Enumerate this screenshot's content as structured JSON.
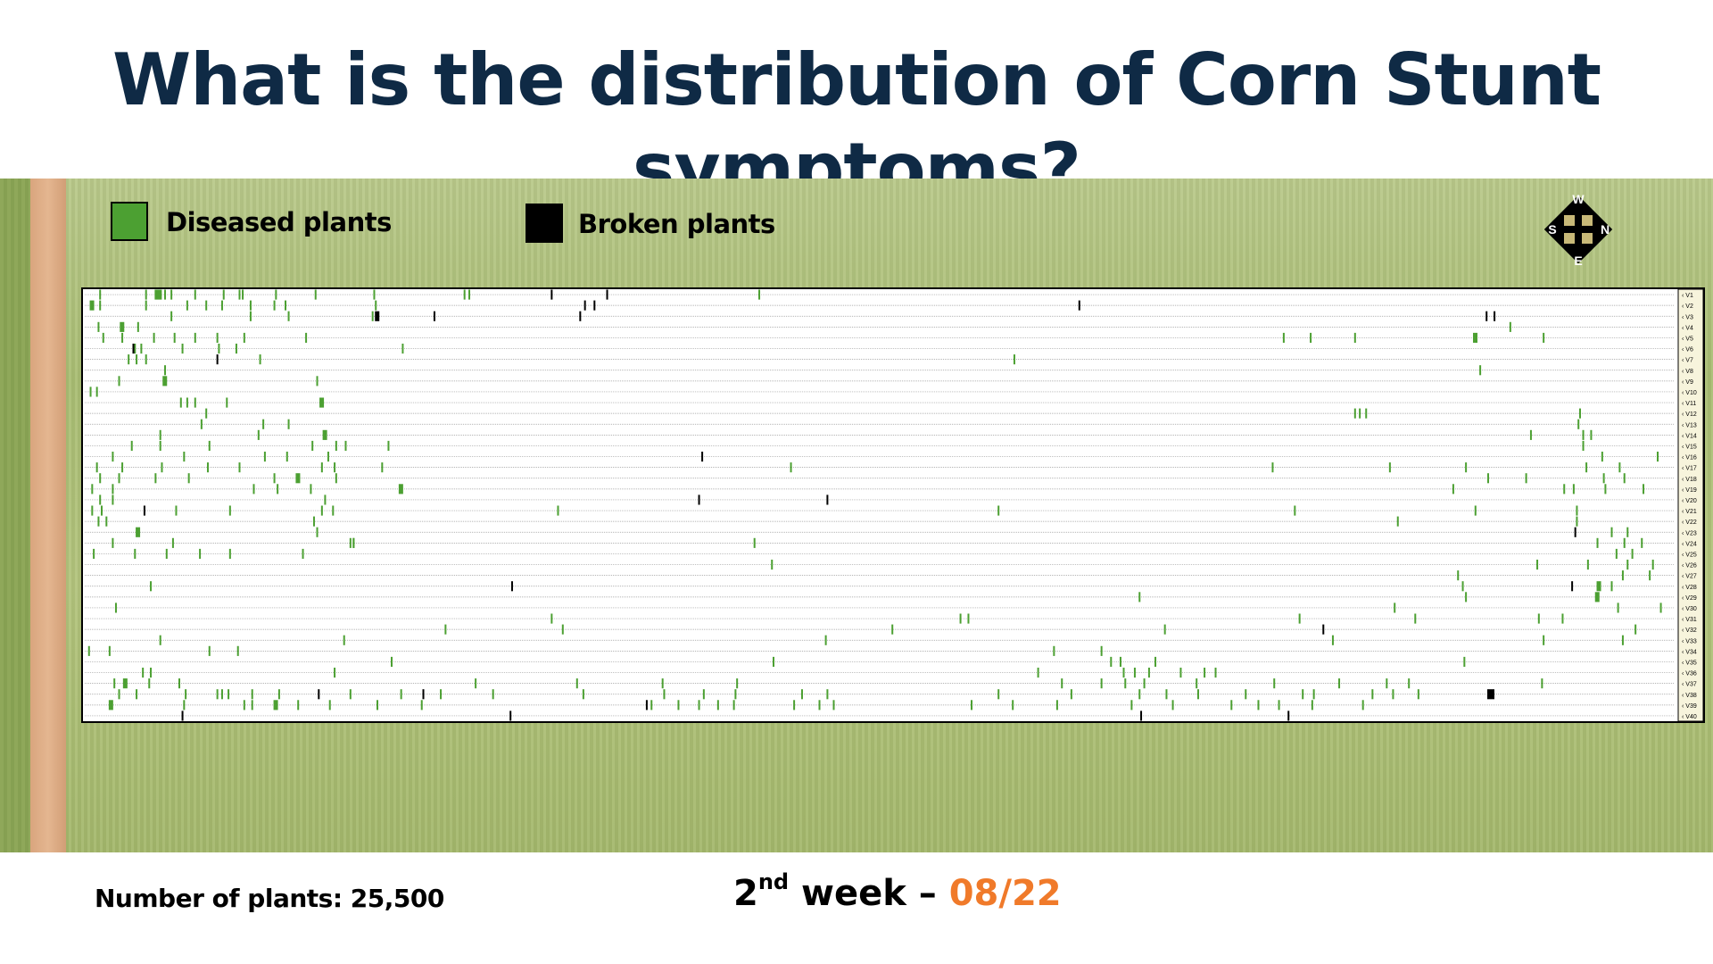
{
  "title": "What is the distribution of Corn Stunt symptoms?",
  "legend": {
    "diseased_label": "Diseased plants",
    "broken_label": "Broken plants",
    "diseased_color": "#4ca032",
    "broken_color": "#000000"
  },
  "compass": {
    "top": "W",
    "left": "S",
    "right": "N",
    "bottom": "E"
  },
  "footer": {
    "plant_count": "Number of plants: 25,500",
    "week_num": "2",
    "week_sup": "nd",
    "week_word": " week – ",
    "week_date": "08/22"
  },
  "row_labels": [
    "V1",
    "V2",
    "V3",
    "V4",
    "V5",
    "V6",
    "V7",
    "V8",
    "V9",
    "V10",
    "V11",
    "V12",
    "V13",
    "V14",
    "V15",
    "V16",
    "V17",
    "V18",
    "V19",
    "V20",
    "V21",
    "V22",
    "V23",
    "V24",
    "V25",
    "V26",
    "V27",
    "V28",
    "V29",
    "V30",
    "V31",
    "V32",
    "V33",
    "V34",
    "V35",
    "V36",
    "V37",
    "V38",
    "V39",
    "V40"
  ],
  "marks": {
    "diseased": [
      [
        [
          0.008,
          1
        ],
        [
          0.037,
          1
        ],
        [
          0.043,
          3
        ],
        [
          0.049,
          1
        ],
        [
          0.053,
          1
        ],
        [
          0.068,
          1
        ],
        [
          0.086,
          1
        ],
        [
          0.096,
          1
        ],
        [
          0.098,
          1
        ],
        [
          0.119,
          1
        ],
        [
          0.144,
          1
        ],
        [
          0.181,
          1
        ],
        [
          0.238,
          1
        ],
        [
          0.241,
          1
        ],
        [
          0.424,
          1
        ]
      ],
      [
        [
          0.002,
          2
        ],
        [
          0.008,
          1
        ],
        [
          0.037,
          1
        ],
        [
          0.063,
          1
        ],
        [
          0.075,
          1
        ],
        [
          0.085,
          1
        ],
        [
          0.103,
          1
        ],
        [
          0.118,
          1
        ],
        [
          0.125,
          1
        ],
        [
          0.182,
          1
        ]
      ],
      [
        [
          0.053,
          1
        ],
        [
          0.103,
          1
        ],
        [
          0.127,
          1
        ],
        [
          0.18,
          1
        ]
      ],
      [
        [
          0.007,
          1
        ],
        [
          0.021,
          2
        ],
        [
          0.032,
          1
        ],
        [
          0.898,
          1
        ]
      ],
      [
        [
          0.01,
          1
        ],
        [
          0.022,
          1
        ],
        [
          0.042,
          1
        ],
        [
          0.055,
          1
        ],
        [
          0.068,
          1
        ],
        [
          0.082,
          1
        ],
        [
          0.099,
          1
        ],
        [
          0.138,
          1
        ],
        [
          0.755,
          1
        ],
        [
          0.772,
          1
        ],
        [
          0.8,
          1
        ],
        [
          0.875,
          2
        ],
        [
          0.919,
          1
        ]
      ],
      [
        [
          0.03,
          1
        ],
        [
          0.034,
          1
        ],
        [
          0.06,
          1
        ],
        [
          0.083,
          1
        ],
        [
          0.094,
          1
        ],
        [
          0.199,
          1
        ]
      ],
      [
        [
          0.026,
          1
        ],
        [
          0.031,
          1
        ],
        [
          0.037,
          1
        ],
        [
          0.109,
          1
        ],
        [
          0.585,
          1
        ]
      ],
      [
        [
          0.049,
          1
        ],
        [
          0.879,
          1
        ]
      ],
      [
        [
          0.02,
          1
        ],
        [
          0.048,
          2
        ],
        [
          0.145,
          1
        ]
      ],
      [
        [
          0.002,
          1
        ],
        [
          0.006,
          1
        ]
      ],
      [
        [
          0.059,
          1
        ],
        [
          0.063,
          1
        ],
        [
          0.068,
          1
        ],
        [
          0.088,
          1
        ],
        [
          0.147,
          2
        ]
      ],
      [
        [
          0.075,
          1
        ],
        [
          0.8,
          1
        ],
        [
          0.803,
          1
        ],
        [
          0.807,
          1
        ],
        [
          0.942,
          1
        ]
      ],
      [
        [
          0.072,
          1
        ],
        [
          0.111,
          1
        ],
        [
          0.127,
          1
        ],
        [
          0.941,
          1
        ]
      ],
      [
        [
          0.046,
          1
        ],
        [
          0.108,
          1
        ],
        [
          0.149,
          2
        ],
        [
          0.911,
          1
        ],
        [
          0.944,
          1
        ],
        [
          0.949,
          1
        ]
      ],
      [
        [
          0.028,
          1
        ],
        [
          0.046,
          1
        ],
        [
          0.077,
          1
        ],
        [
          0.142,
          1
        ],
        [
          0.157,
          1
        ],
        [
          0.163,
          1
        ],
        [
          0.19,
          1
        ],
        [
          0.944,
          1
        ]
      ],
      [
        [
          0.016,
          1
        ],
        [
          0.061,
          1
        ],
        [
          0.112,
          1
        ],
        [
          0.126,
          1
        ],
        [
          0.152,
          1
        ],
        [
          0.956,
          1
        ],
        [
          0.991,
          1
        ]
      ],
      [
        [
          0.006,
          1
        ],
        [
          0.022,
          1
        ],
        [
          0.047,
          1
        ],
        [
          0.076,
          1
        ],
        [
          0.096,
          1
        ],
        [
          0.148,
          1
        ],
        [
          0.156,
          1
        ],
        [
          0.186,
          1
        ],
        [
          0.444,
          1
        ],
        [
          0.748,
          1
        ],
        [
          0.822,
          1
        ],
        [
          0.87,
          1
        ],
        [
          0.946,
          1
        ],
        [
          0.967,
          1
        ]
      ],
      [
        [
          0.008,
          1
        ],
        [
          0.02,
          1
        ],
        [
          0.043,
          1
        ],
        [
          0.064,
          1
        ],
        [
          0.118,
          1
        ],
        [
          0.132,
          2
        ],
        [
          0.157,
          1
        ],
        [
          0.884,
          1
        ],
        [
          0.908,
          1
        ],
        [
          0.957,
          1
        ],
        [
          0.97,
          1
        ]
      ],
      [
        [
          0.003,
          1
        ],
        [
          0.016,
          1
        ],
        [
          0.105,
          1
        ],
        [
          0.12,
          1
        ],
        [
          0.141,
          1
        ],
        [
          0.197,
          2
        ],
        [
          0.862,
          1
        ],
        [
          0.932,
          1
        ],
        [
          0.938,
          1
        ],
        [
          0.958,
          1
        ],
        [
          0.982,
          1
        ]
      ],
      [
        [
          0.008,
          1
        ],
        [
          0.016,
          1
        ],
        [
          0.15,
          1
        ]
      ],
      [
        [
          0.003,
          1
        ],
        [
          0.009,
          1
        ],
        [
          0.056,
          1
        ],
        [
          0.09,
          1
        ],
        [
          0.148,
          1
        ],
        [
          0.155,
          1
        ],
        [
          0.297,
          1
        ],
        [
          0.575,
          1
        ],
        [
          0.762,
          1
        ],
        [
          0.876,
          1
        ],
        [
          0.94,
          1
        ]
      ],
      [
        [
          0.007,
          1
        ],
        [
          0.012,
          1
        ],
        [
          0.143,
          1
        ],
        [
          0.827,
          1
        ],
        [
          0.94,
          1
        ]
      ],
      [
        [
          0.031,
          2
        ],
        [
          0.145,
          1
        ],
        [
          0.962,
          1
        ],
        [
          0.972,
          1
        ]
      ],
      [
        [
          0.016,
          1
        ],
        [
          0.054,
          1
        ],
        [
          0.166,
          1
        ],
        [
          0.168,
          1
        ],
        [
          0.168,
          1
        ],
        [
          0.421,
          1
        ],
        [
          0.953,
          1
        ],
        [
          0.97,
          1
        ],
        [
          0.981,
          1
        ]
      ],
      [
        [
          0.004,
          1
        ],
        [
          0.03,
          1
        ],
        [
          0.05,
          1
        ],
        [
          0.071,
          1
        ],
        [
          0.09,
          1
        ],
        [
          0.136,
          1
        ],
        [
          0.965,
          1
        ],
        [
          0.975,
          1
        ]
      ],
      [
        [
          0.432,
          1
        ],
        [
          0.915,
          1
        ],
        [
          0.947,
          1
        ],
        [
          0.972,
          1
        ],
        [
          0.988,
          1
        ]
      ],
      [
        [
          0.865,
          1
        ],
        [
          0.969,
          1
        ],
        [
          0.986,
          1
        ]
      ],
      [
        [
          0.04,
          1
        ],
        [
          0.868,
          1
        ],
        [
          0.953,
          2
        ],
        [
          0.962,
          1
        ]
      ],
      [
        [
          0.664,
          1
        ],
        [
          0.87,
          1
        ],
        [
          0.952,
          2
        ]
      ],
      [
        [
          0.018,
          1
        ],
        [
          0.825,
          1
        ],
        [
          0.966,
          1
        ],
        [
          0.993,
          1
        ]
      ],
      [
        [
          0.293,
          1
        ],
        [
          0.551,
          1
        ],
        [
          0.556,
          1
        ],
        [
          0.765,
          1
        ],
        [
          0.838,
          1
        ],
        [
          0.916,
          1
        ],
        [
          0.931,
          1
        ]
      ],
      [
        [
          0.226,
          1
        ],
        [
          0.3,
          1
        ],
        [
          0.508,
          1
        ],
        [
          0.68,
          1
        ],
        [
          0.977,
          1
        ]
      ],
      [
        [
          0.046,
          1
        ],
        [
          0.162,
          1
        ],
        [
          0.466,
          1
        ],
        [
          0.786,
          1
        ],
        [
          0.919,
          1
        ],
        [
          0.969,
          1
        ]
      ],
      [
        [
          0.001,
          1
        ],
        [
          0.014,
          1
        ],
        [
          0.077,
          1
        ],
        [
          0.095,
          1
        ],
        [
          0.61,
          1
        ],
        [
          0.64,
          1
        ]
      ],
      [
        [
          0.192,
          1
        ],
        [
          0.433,
          1
        ],
        [
          0.646,
          1
        ],
        [
          0.652,
          1
        ],
        [
          0.674,
          1
        ],
        [
          0.869,
          1
        ]
      ],
      [
        [
          0.035,
          1
        ],
        [
          0.04,
          1
        ],
        [
          0.156,
          1
        ],
        [
          0.6,
          1
        ],
        [
          0.654,
          1
        ],
        [
          0.661,
          1
        ],
        [
          0.67,
          1
        ],
        [
          0.69,
          1
        ],
        [
          0.705,
          1
        ],
        [
          0.712,
          1
        ]
      ],
      [
        [
          0.017,
          1
        ],
        [
          0.023,
          2
        ],
        [
          0.039,
          1
        ],
        [
          0.058,
          1
        ],
        [
          0.245,
          1
        ],
        [
          0.309,
          1
        ],
        [
          0.363,
          1
        ],
        [
          0.41,
          1
        ],
        [
          0.615,
          1
        ],
        [
          0.64,
          1
        ],
        [
          0.655,
          1
        ],
        [
          0.667,
          1
        ],
        [
          0.7,
          1
        ],
        [
          0.749,
          1
        ],
        [
          0.79,
          1
        ],
        [
          0.82,
          1
        ],
        [
          0.834,
          1
        ],
        [
          0.918,
          1
        ]
      ],
      [
        [
          0.02,
          1
        ],
        [
          0.031,
          1
        ],
        [
          0.062,
          1
        ],
        [
          0.082,
          1
        ],
        [
          0.085,
          1
        ],
        [
          0.089,
          1
        ],
        [
          0.104,
          1
        ],
        [
          0.121,
          1
        ],
        [
          0.166,
          1
        ],
        [
          0.198,
          1
        ],
        [
          0.223,
          1
        ],
        [
          0.256,
          1
        ],
        [
          0.313,
          1
        ],
        [
          0.364,
          1
        ],
        [
          0.389,
          1
        ],
        [
          0.409,
          1
        ],
        [
          0.451,
          1
        ],
        [
          0.467,
          1
        ],
        [
          0.575,
          1
        ],
        [
          0.621,
          1
        ],
        [
          0.664,
          1
        ],
        [
          0.681,
          1
        ],
        [
          0.701,
          1
        ],
        [
          0.731,
          1
        ],
        [
          0.767,
          1
        ],
        [
          0.774,
          1
        ],
        [
          0.811,
          1
        ],
        [
          0.824,
          1
        ],
        [
          0.84,
          1
        ]
      ],
      [
        [
          0.014,
          2
        ],
        [
          0.061,
          1
        ],
        [
          0.099,
          1
        ],
        [
          0.104,
          1
        ],
        [
          0.118,
          2
        ],
        [
          0.133,
          1
        ],
        [
          0.153,
          1
        ],
        [
          0.183,
          1
        ],
        [
          0.211,
          1
        ],
        [
          0.356,
          1
        ],
        [
          0.373,
          1
        ],
        [
          0.386,
          1
        ],
        [
          0.398,
          1
        ],
        [
          0.408,
          1
        ],
        [
          0.446,
          1
        ],
        [
          0.462,
          1
        ],
        [
          0.471,
          1
        ],
        [
          0.558,
          1
        ],
        [
          0.584,
          1
        ],
        [
          0.612,
          1
        ],
        [
          0.659,
          1
        ],
        [
          0.685,
          1
        ],
        [
          0.722,
          1
        ],
        [
          0.739,
          1
        ],
        [
          0.752,
          1
        ],
        [
          0.773,
          1
        ],
        [
          0.805,
          1
        ]
      ]
    ],
    "broken": [
      [
        [
          0.293,
          1
        ],
        [
          0.328,
          1
        ]
      ],
      [
        [
          0.314,
          1
        ],
        [
          0.32,
          1
        ],
        [
          0.626,
          1
        ]
      ],
      [
        [
          0.182,
          2
        ],
        [
          0.219,
          1
        ],
        [
          0.311,
          1
        ],
        [
          0.883,
          1
        ],
        [
          0.888,
          1
        ]
      ],
      [],
      [],
      [
        [
          0.029,
          1
        ]
      ],
      [
        [
          0.082,
          1
        ]
      ],
      [],
      [],
      [],
      [],
      [],
      [],
      [],
      [],
      [
        [
          0.388,
          1
        ]
      ],
      [],
      [],
      [],
      [
        [
          0.386,
          1
        ],
        [
          0.467,
          1
        ]
      ],
      [
        [
          0.036,
          1
        ]
      ],
      [],
      [
        [
          0.939,
          1
        ]
      ],
      [],
      [],
      [],
      [],
      [
        [
          0.268,
          1
        ],
        [
          0.937,
          1
        ]
      ],
      [],
      [],
      [],
      [
        [
          0.78,
          1
        ]
      ],
      [],
      [],
      [],
      [],
      [],
      [
        [
          0.146,
          1
        ],
        [
          0.212,
          1
        ],
        [
          0.884,
          3
        ]
      ],
      [
        [
          0.353,
          1
        ]
      ],
      [
        [
          0.06,
          1
        ],
        [
          0.267,
          1
        ],
        [
          0.665,
          1
        ],
        [
          0.758,
          1
        ]
      ]
    ]
  }
}
